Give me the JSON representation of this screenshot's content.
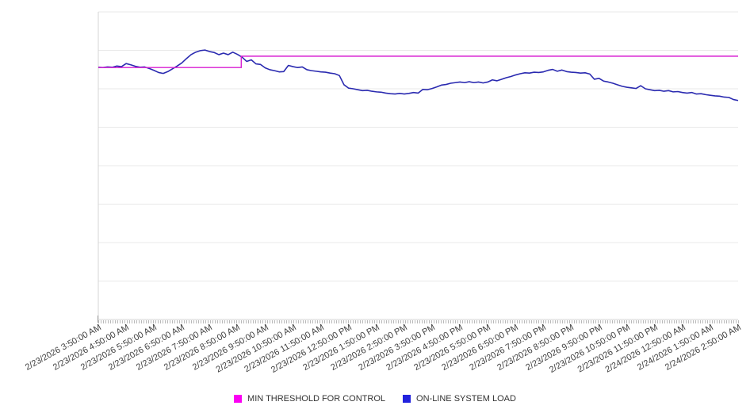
{
  "chart_data": {
    "type": "line",
    "title": "",
    "xlabel": "",
    "ylabel": "",
    "ylim": [
      0,
      100
    ],
    "gridline_divisions": 8,
    "grid": "horizontal",
    "legend_position": "bottom-center",
    "x_labels": [
      "2/23/2026 3:50:00 AM",
      "2/23/2026 4:50:00 AM",
      "2/23/2026 5:50:00 AM",
      "2/23/2026 6:50:00 AM",
      "2/23/2026 7:50:00 AM",
      "2/23/2026 8:50:00 AM",
      "2/23/2026 9:50:00 AM",
      "2/23/2026 10:50:00 AM",
      "2/23/2026 11:50:00 AM",
      "2/23/2026 12:50:00 PM",
      "2/23/2026 1:50:00 PM",
      "2/23/2026 2:50:00 PM",
      "2/23/2026 3:50:00 PM",
      "2/23/2026 4:50:00 PM",
      "2/23/2026 5:50:00 PM",
      "2/23/2026 6:50:00 PM",
      "2/23/2026 7:50:00 PM",
      "2/23/2026 8:50:00 PM",
      "2/23/2026 9:50:00 PM",
      "2/23/2026 10:50:00 PM",
      "2/23/2026 11:50:00 PM",
      "2/24/2026 12:50:00 AM",
      "2/24/2026 1:50:00 AM",
      "2/24/2026 2:50:00 AM"
    ],
    "series": [
      {
        "name": "MIN THRESHOLD FOR CONTROL",
        "color": "#d81fd2",
        "swatch_color": "#fb00f3",
        "points": [
          [
            0,
            81.9
          ],
          [
            30.83,
            81.9
          ],
          [
            30.83,
            85.6
          ],
          [
            138,
            85.6
          ]
        ]
      },
      {
        "name": "ON-LINE SYSTEM LOAD",
        "color": "#2a2ab0",
        "swatch_color": "#2222dd",
        "values": [
          82.0,
          81.9,
          82.1,
          82.0,
          82.4,
          82.2,
          83.2,
          82.8,
          82.3,
          82.0,
          82.1,
          81.6,
          81.0,
          80.3,
          80.0,
          80.6,
          81.5,
          82.4,
          83.4,
          84.8,
          86.1,
          86.9,
          87.4,
          87.6,
          87.1,
          86.8,
          86.1,
          86.6,
          86.1,
          86.9,
          86.2,
          85.3,
          83.9,
          84.4,
          83.1,
          82.9,
          81.8,
          81.2,
          80.9,
          80.5,
          80.6,
          82.6,
          82.2,
          81.9,
          82.1,
          81.2,
          80.9,
          80.7,
          80.5,
          80.4,
          80.1,
          79.9,
          79.3,
          76.3,
          75.2,
          75.0,
          74.7,
          74.4,
          74.5,
          74.2,
          74.0,
          73.9,
          73.6,
          73.4,
          73.3,
          73.5,
          73.3,
          73.5,
          73.8,
          73.6,
          74.8,
          74.7,
          75.1,
          75.6,
          76.2,
          76.4,
          76.8,
          77.0,
          77.2,
          77.0,
          77.3,
          77.0,
          77.2,
          76.9,
          77.2,
          77.9,
          77.6,
          78.1,
          78.6,
          79.0,
          79.5,
          79.9,
          80.2,
          80.1,
          80.4,
          80.3,
          80.5,
          81.0,
          81.3,
          80.7,
          81.1,
          80.6,
          80.4,
          80.3,
          80.1,
          80.2,
          79.8,
          78.1,
          78.4,
          77.5,
          77.2,
          76.8,
          76.3,
          75.8,
          75.5,
          75.3,
          75.1,
          76.0,
          75.0,
          74.7,
          74.4,
          74.5,
          74.2,
          74.4,
          74.0,
          74.1,
          73.8,
          73.6,
          73.8,
          73.3,
          73.4,
          73.1,
          72.9,
          72.7,
          72.6,
          72.3,
          72.2,
          71.5,
          71.2
        ]
      }
    ]
  },
  "legend": {
    "items": [
      {
        "label": "MIN THRESHOLD FOR CONTROL"
      },
      {
        "label": "ON-LINE SYSTEM LOAD"
      }
    ]
  }
}
